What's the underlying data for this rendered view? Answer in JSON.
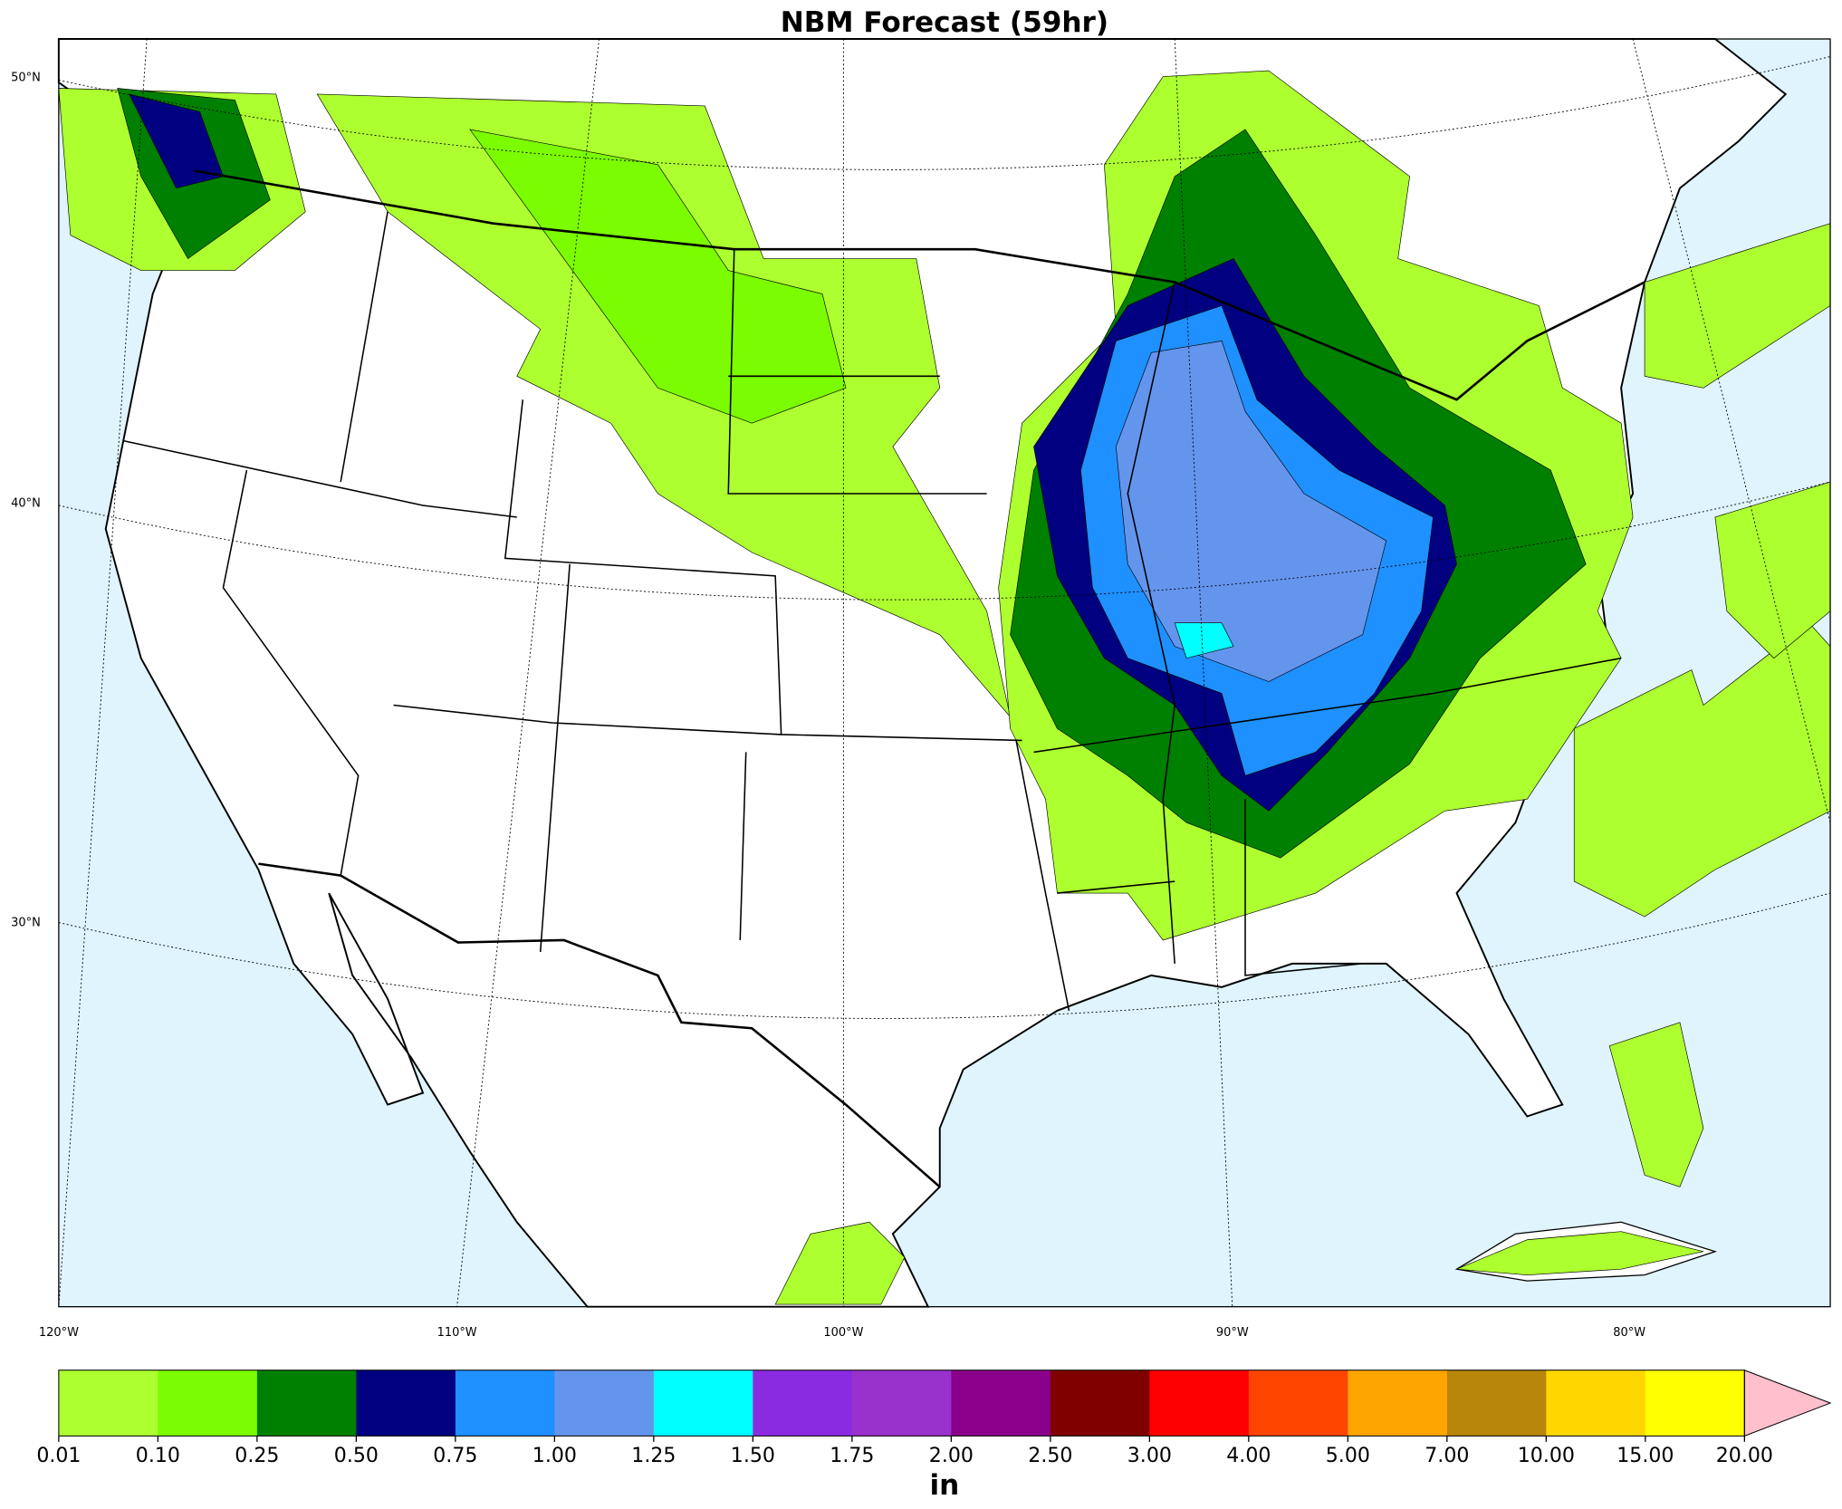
{
  "title": "NBM Forecast (59hr)",
  "map": {
    "lat_labels": [
      "50°N",
      "40°N",
      "30°N"
    ],
    "lon_labels": [
      "120°W",
      "110°W",
      "100°W",
      "90°W",
      "80°W"
    ]
  },
  "colorbar": {
    "label": "in",
    "ticks": [
      "0.01",
      "0.10",
      "0.25",
      "0.50",
      "0.75",
      "1.00",
      "1.25",
      "1.50",
      "1.75",
      "2.00",
      "2.50",
      "3.00",
      "4.00",
      "5.00",
      "7.00",
      "10.00",
      "15.00",
      "20.00"
    ],
    "colors": [
      "#adff2f",
      "#7cfc00",
      "#008000",
      "#000080",
      "#1e90ff",
      "#6495ed",
      "#00ffff",
      "#8a2be2",
      "#9932cc",
      "#8b008b",
      "#800000",
      "#ff0000",
      "#ff4500",
      "#ffa500",
      "#b8860b",
      "#ffd700",
      "#ffff00"
    ],
    "extend_color": "#ffc0cb"
  }
}
